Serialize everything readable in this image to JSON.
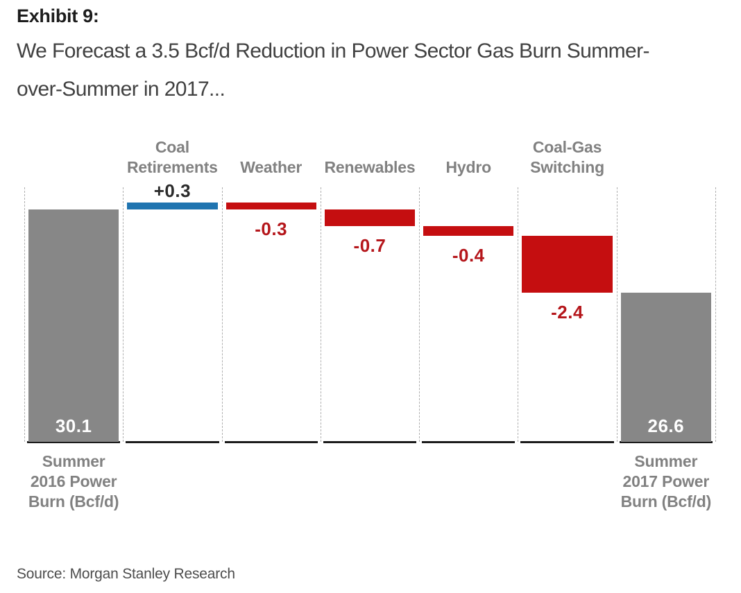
{
  "page": {
    "exhibit_label": "Exhibit 9:",
    "subtitle_line1": "We Forecast a 3.5 Bcf/d Reduction in Power Sector Gas Burn Summer-",
    "subtitle_line2": "over-Summer in 2017...",
    "source": "Source: Morgan Stanley Research"
  },
  "colors": {
    "total_bar": "#878787",
    "increase_bar": "#1F74B0",
    "decrease_bar": "#C50E10",
    "total_value_text": "#FFFFFF",
    "increase_value_text": "#2B2B2B",
    "decrease_value_text": "#B5161B",
    "category_label_text": "#818181",
    "gridline": "#AFAFAF",
    "baseline": "#1B1B1B"
  },
  "chart_data": {
    "type": "bar",
    "subtype": "waterfall",
    "title": "We Forecast a 3.5 Bcf/d Reduction in Power Sector Gas Burn Summer-over-Summer in 2017...",
    "unit": "Bcf/d",
    "ylim": [
      20.3,
      31.05
    ],
    "grid": "vertical-dashed",
    "legend": "none",
    "columns": [
      {
        "label": "Summer\n2016 Power\nBurn (Bcf/d)",
        "label_position": "bottom",
        "kind": "total",
        "value": 30.1,
        "value_label": "30.1"
      },
      {
        "label": "Coal\nRetirements",
        "label_position": "top",
        "kind": "increase",
        "value": 0.3,
        "value_label": "+0.3"
      },
      {
        "label": "Weather",
        "label_position": "top",
        "kind": "decrease",
        "value": -0.3,
        "value_label": "-0.3"
      },
      {
        "label": "Renewables",
        "label_position": "top",
        "kind": "decrease",
        "value": -0.7,
        "value_label": "-0.7"
      },
      {
        "label": "Hydro",
        "label_position": "top",
        "kind": "decrease",
        "value": -0.4,
        "value_label": "-0.4"
      },
      {
        "label": "Coal-Gas\nSwitching",
        "label_position": "top",
        "kind": "decrease",
        "value": -2.4,
        "value_label": "-2.4"
      },
      {
        "label": "Summer\n2017 Power\nBurn (Bcf/d)",
        "label_position": "bottom",
        "kind": "total",
        "value": 26.6,
        "value_label": "26.6"
      }
    ]
  }
}
